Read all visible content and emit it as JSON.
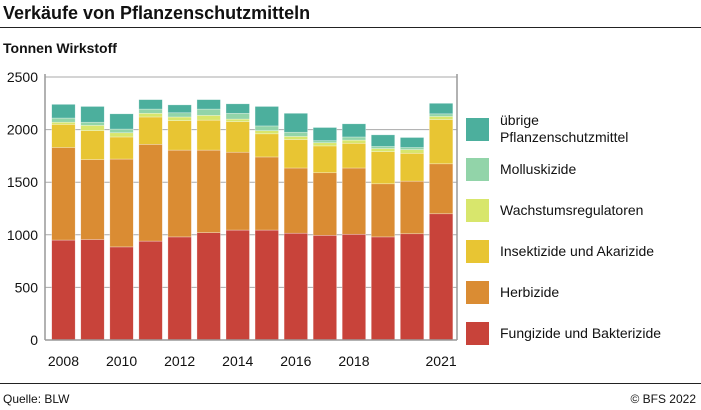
{
  "title": "Verkäufe von Pflanzenschutzmitteln",
  "source": "Quelle: BLW",
  "copyright": "© BFS 2022",
  "chart_data": {
    "type": "bar",
    "stacked": true,
    "ylabel": "Tonnen Wirkstoff",
    "ylim": [
      0,
      2500
    ],
    "yticks": [
      "0",
      "500",
      "1000",
      "1500",
      "2000",
      "2500"
    ],
    "grid": true,
    "legend_position": "right",
    "categories": [
      "2008",
      "2009",
      "2010",
      "2011",
      "2012",
      "2013",
      "2014",
      "2015",
      "2016",
      "2017",
      "2018",
      "2019",
      "2020",
      "2021"
    ],
    "xtick_labels": {
      "0": "2008",
      "2": "2010",
      "4": "2012",
      "6": "2014",
      "8": "2016",
      "10": "2018",
      "13": "2021"
    },
    "series": [
      {
        "name": "Fungizide und Bakterizide",
        "color": "#c8433a",
        "values": [
          950,
          955,
          885,
          940,
          980,
          1020,
          1045,
          1045,
          1015,
          995,
          1005,
          980,
          1010,
          1200
        ]
      },
      {
        "name": "Herbizide",
        "color": "#da8c33",
        "values": [
          880,
          760,
          835,
          920,
          825,
          785,
          740,
          695,
          620,
          595,
          630,
          505,
          500,
          475
        ]
      },
      {
        "name": "Insektizide und Akarizide",
        "color": "#e8c533",
        "values": [
          220,
          275,
          210,
          260,
          280,
          285,
          290,
          220,
          270,
          255,
          235,
          305,
          265,
          420
        ]
      },
      {
        "name": "Wachstumsregulatoren",
        "color": "#d8e66c",
        "values": [
          20,
          50,
          40,
          35,
          35,
          45,
          25,
          30,
          30,
          30,
          30,
          30,
          35,
          30
        ]
      },
      {
        "name": "Molluskizide",
        "color": "#92d4a9",
        "values": [
          40,
          30,
          35,
          40,
          40,
          60,
          55,
          45,
          40,
          20,
          30,
          20,
          20,
          25
        ]
      },
      {
        "name": "übrige Pflanzenschutzmittel",
        "color": "#4caf9d",
        "values": [
          130,
          150,
          145,
          90,
          75,
          90,
          90,
          185,
          180,
          125,
          125,
          110,
          95,
          100
        ]
      }
    ]
  }
}
